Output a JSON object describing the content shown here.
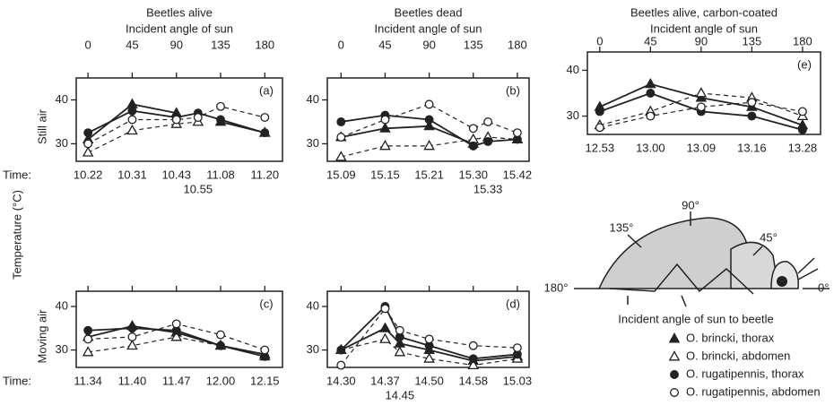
{
  "chart_data": [
    {
      "type": "line",
      "title": "Beetles alive",
      "xlabel": "Incident angle of sun",
      "panel": "(a)",
      "row_label": "Still air",
      "time_label": "Time:",
      "xlim": [
        -12,
        198
      ],
      "xticks": [
        0,
        45,
        90,
        135,
        180
      ],
      "top_tick_labels": true,
      "ylim": [
        26,
        45
      ],
      "yticks": [
        30,
        40
      ],
      "x": [
        0,
        45,
        90,
        112,
        135,
        180
      ],
      "times": [
        "10.22",
        "10.31",
        "10.43",
        "10.55",
        "11.08",
        "11.20"
      ],
      "series": [
        {
          "marker": "triangle",
          "filled": true,
          "dashed": false,
          "values": [
            31,
            39,
            37,
            null,
            35,
            32.5
          ]
        },
        {
          "marker": "triangle",
          "filled": false,
          "dashed": true,
          "values": [
            28,
            33,
            34.5,
            35,
            null,
            32.5
          ]
        },
        {
          "marker": "circle",
          "filled": true,
          "dashed": false,
          "values": [
            32.5,
            37.5,
            36,
            37,
            35.5,
            32.5
          ]
        },
        {
          "marker": "circle",
          "filled": false,
          "dashed": true,
          "values": [
            30,
            35.5,
            35.5,
            36,
            38.5,
            36
          ]
        }
      ]
    },
    {
      "type": "line",
      "title": "Beetles dead",
      "xlabel": "Incident angle of sun",
      "panel": "(b)",
      "xlim": [
        -14,
        192
      ],
      "xticks": [
        0,
        45,
        90,
        135,
        180
      ],
      "top_tick_labels": true,
      "ylim": [
        26,
        45
      ],
      "yticks": [
        30,
        40
      ],
      "x": [
        0,
        45,
        90,
        135,
        150,
        180
      ],
      "times": [
        "15.09",
        "15.15",
        "15.21",
        "15.30",
        "15.33",
        "15.42"
      ],
      "series": [
        {
          "marker": "triangle",
          "filled": true,
          "dashed": false,
          "values": [
            31.5,
            33.5,
            34,
            30,
            null,
            31
          ]
        },
        {
          "marker": "triangle",
          "filled": false,
          "dashed": true,
          "values": [
            27,
            29.5,
            29.5,
            31,
            31.5,
            31
          ]
        },
        {
          "marker": "circle",
          "filled": true,
          "dashed": false,
          "values": [
            35,
            36.5,
            35.5,
            29.5,
            30.5,
            31
          ]
        },
        {
          "marker": "circle",
          "filled": false,
          "dashed": true,
          "values": [
            31.5,
            35.5,
            39,
            33.5,
            35,
            32.5
          ]
        }
      ]
    },
    {
      "type": "line",
      "title": "Beetles alive, carbon-coated",
      "xlabel": "Incident angle of sun",
      "panel": "(e)",
      "xlim": [
        -11,
        196
      ],
      "xticks": [
        0,
        45,
        90,
        135,
        180
      ],
      "top_tick_labels": true,
      "ylim": [
        26,
        44
      ],
      "yticks": [
        30,
        40
      ],
      "x": [
        0,
        45,
        90,
        135,
        180
      ],
      "times": [
        "12.53",
        "13.00",
        "13.09",
        "13.16",
        "13.28"
      ],
      "series": [
        {
          "marker": "triangle",
          "filled": true,
          "dashed": false,
          "values": [
            32,
            37,
            34,
            32,
            28
          ]
        },
        {
          "marker": "triangle",
          "filled": false,
          "dashed": true,
          "values": [
            28,
            31,
            35,
            34,
            30
          ]
        },
        {
          "marker": "circle",
          "filled": true,
          "dashed": false,
          "values": [
            31,
            35,
            31,
            30,
            27
          ]
        },
        {
          "marker": "circle",
          "filled": false,
          "dashed": true,
          "values": [
            27.5,
            30,
            32,
            33,
            31
          ]
        }
      ]
    },
    {
      "type": "line",
      "panel": "(c)",
      "row_label": "Moving air",
      "time_label": "Time:",
      "xlim": [
        -12,
        198
      ],
      "xticks": [
        0,
        45,
        90,
        135,
        180
      ],
      "top_tick_labels": false,
      "ylim": [
        26,
        43.5
      ],
      "yticks": [
        30,
        40
      ],
      "x": [
        0,
        45,
        90,
        135,
        180
      ],
      "times": [
        "11.34",
        "11.40",
        "11.47",
        "12.00",
        "12.15"
      ],
      "series": [
        {
          "marker": "triangle",
          "filled": true,
          "dashed": false,
          "values": [
            33,
            35.5,
            34,
            31,
            29
          ]
        },
        {
          "marker": "triangle",
          "filled": false,
          "dashed": true,
          "values": [
            29.5,
            31,
            33,
            31,
            28.5
          ]
        },
        {
          "marker": "circle",
          "filled": true,
          "dashed": false,
          "values": [
            34.5,
            35,
            34.5,
            31,
            28.5
          ]
        },
        {
          "marker": "circle",
          "filled": false,
          "dashed": true,
          "values": [
            32.5,
            33,
            36,
            33.5,
            30
          ]
        }
      ]
    },
    {
      "type": "line",
      "panel": "(d)",
      "xlim": [
        -14,
        192
      ],
      "xticks": [
        0,
        45,
        90,
        135,
        180
      ],
      "top_tick_labels": false,
      "ylim": [
        26,
        43.5
      ],
      "yticks": [
        30,
        40
      ],
      "x": [
        0,
        45,
        60,
        90,
        135,
        180
      ],
      "times": [
        "14.30",
        "14.37",
        "14.45",
        "14.50",
        "14.58",
        "15.03"
      ],
      "series": [
        {
          "marker": "triangle",
          "filled": true,
          "dashed": false,
          "values": [
            30,
            35,
            31.5,
            30,
            27.5,
            28.5
          ]
        },
        {
          "marker": "triangle",
          "filled": false,
          "dashed": true,
          "values": [
            30,
            32.5,
            29.5,
            28,
            26.5,
            28
          ]
        },
        {
          "marker": "circle",
          "filled": true,
          "dashed": false,
          "values": [
            30,
            40,
            33,
            31,
            28,
            29
          ]
        },
        {
          "marker": "circle",
          "filled": false,
          "dashed": true,
          "values": [
            26.5,
            39.5,
            34.5,
            32.5,
            31,
            30.5
          ]
        }
      ]
    }
  ],
  "ylabel": "Temperature (°C)",
  "legend": [
    {
      "name": "O. brincki, thorax",
      "marker": "triangle",
      "filled": true
    },
    {
      "name": "O. brincki, abdomen",
      "marker": "triangle",
      "filled": false
    },
    {
      "name": "O. rugatipennis, thorax",
      "marker": "circle",
      "filled": true
    },
    {
      "name": "O. rugatipennis, abdomen",
      "marker": "circle",
      "filled": false
    }
  ],
  "diagram": {
    "angle_135": "135°",
    "angle_90": "90°",
    "angle_45": "45°",
    "angle_180": "180°",
    "angle_0": "0°",
    "caption": "Incident angle of sun to beetle"
  }
}
